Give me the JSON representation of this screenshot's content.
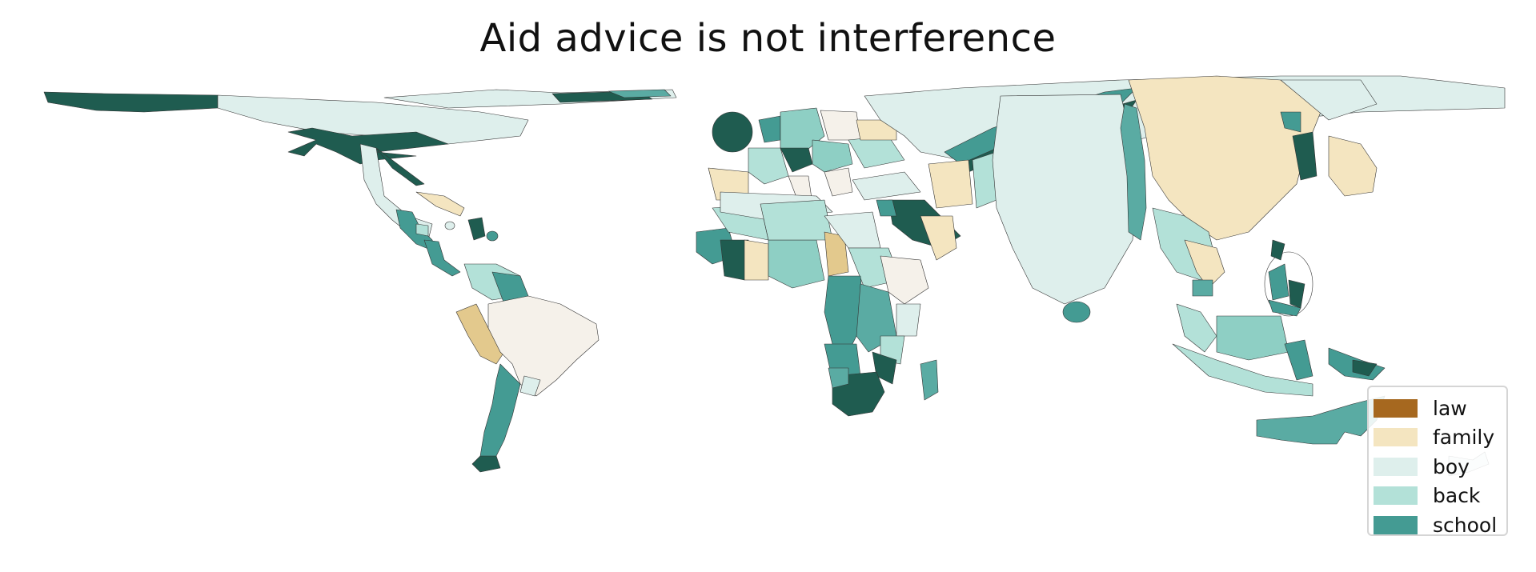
{
  "title": "Aid advice is not interference",
  "legend": [
    {
      "label": "law",
      "color": "#a6681f"
    },
    {
      "label": "family",
      "color": "#f4e5c0"
    },
    {
      "label": "boy",
      "color": "#deefec"
    },
    {
      "label": "back",
      "color": "#b3e1d8"
    },
    {
      "label": "school",
      "color": "#449b93"
    }
  ],
  "colors": {
    "law": "#a6681f",
    "family_dark": "#e3c98d",
    "family": "#f4e5c0",
    "neutral": "#f5f1ea",
    "boy": "#deefec",
    "back": "#b3e1d8",
    "back_mid": "#8ecfc4",
    "school": "#5aaba3",
    "school_dark": "#1f5c50",
    "border": "#333333"
  }
}
